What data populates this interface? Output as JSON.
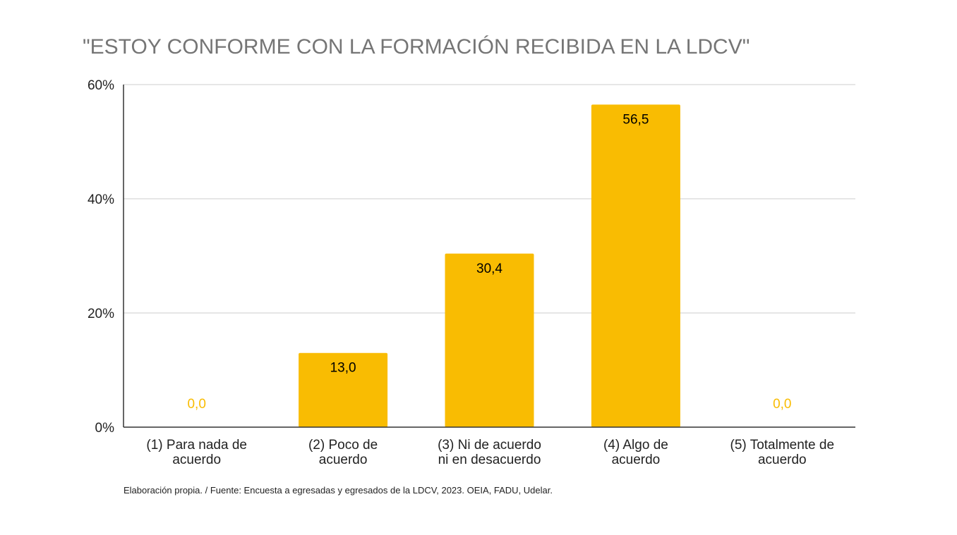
{
  "chart_data": {
    "type": "bar",
    "title": "\"ESTOY CONFORME CON LA FORMACIÓN RECIBIDA EN LA LDCV\"",
    "categories": [
      [
        "(1) Para nada de",
        "acuerdo"
      ],
      [
        "(2) Poco de",
        "acuerdo"
      ],
      [
        "(3) Ni de acuerdo",
        "ni en desacuerdo"
      ],
      [
        "(4) Algo de",
        "acuerdo"
      ],
      [
        "(5) Totalmente de",
        "acuerdo"
      ]
    ],
    "values": [
      0.0,
      13.0,
      30.4,
      56.5,
      0.0
    ],
    "data_labels": [
      "0,0",
      "13,0",
      "30,4",
      "56,5",
      "0,0"
    ],
    "yticks": [
      {
        "value": 0,
        "label": "0%"
      },
      {
        "value": 20,
        "label": "20%"
      },
      {
        "value": 40,
        "label": "40%"
      },
      {
        "value": 60,
        "label": "60%"
      }
    ],
    "ylim": [
      0,
      60
    ],
    "grid": true,
    "legend": "none",
    "colors": {
      "bar": "#F9BC02",
      "label_inside": "#000000",
      "label_zero": "#F9BC02",
      "title": "#757575",
      "grid": "#CCCCCC",
      "axis": "#333333"
    }
  },
  "footnote": "Elaboración propia. / Fuente: Encuesta a egresadas y egresados de la LDCV, 2023. OEIA, FADU, Udelar."
}
